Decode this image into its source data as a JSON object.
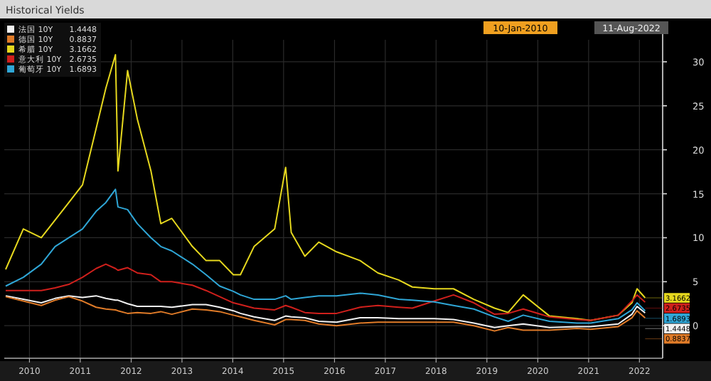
{
  "chart_data": {
    "type": "line",
    "title": "Historical Yields",
    "x": [
      "2010-01-11",
      "2010-05-18",
      "2010-09-24",
      "2011-01-01",
      "2011-04-10",
      "2011-07-17",
      "2011-10-23",
      "2012-01-01",
      "2012-03-10",
      "2012-03-28",
      "2012-06-05",
      "2012-08-14",
      "2012-11-20",
      "2013-01-30",
      "2013-04-19",
      "2013-09-14",
      "2013-12-21",
      "2014-03-29",
      "2014-07-05",
      "2014-08-25",
      "2014-12-01",
      "2015-04-28",
      "2015-07-16",
      "2015-08-25",
      "2015-12-01",
      "2016-03-10",
      "2016-07-16",
      "2017-01-01",
      "2017-05-09",
      "2017-10-05",
      "2018-01-11",
      "2018-06-18",
      "2018-11-03",
      "2019-03-29",
      "2019-08-25",
      "2019-12-01",
      "2020-03-18",
      "2020-09-23",
      "2021-04-08",
      "2021-07-15",
      "2022-01-30",
      "2022-05-08",
      "2022-06-14",
      "2022-08-11"
    ],
    "series": [
      {
        "name": "法国 10Y",
        "color": "#f2f2f2",
        "values": [
          3.4,
          3,
          2.6,
          3.1,
          3.4,
          3.2,
          3.4,
          3.1,
          2.9,
          2.9,
          2.5,
          2.2,
          2.2,
          2.2,
          2.1,
          2.4,
          2.4,
          2.1,
          1.7,
          1.4,
          1,
          0.6,
          1.1,
          1,
          0.9,
          0.5,
          0.4,
          0.9,
          0.9,
          0.8,
          0.8,
          0.8,
          0.7,
          0.3,
          -0.2,
          0,
          0.2,
          -0.2,
          -0.1,
          -0.1,
          0.2,
          1.3,
          2.2,
          1.4448
        ],
        "value_labels": [
          null,
          null,
          null,
          null,
          null,
          null,
          null,
          null,
          null,
          null,
          null,
          null,
          null,
          null,
          null,
          null,
          null,
          null,
          null,
          null,
          null,
          null,
          null,
          null,
          null,
          null,
          null,
          null,
          null,
          null,
          null,
          null,
          null,
          null,
          null,
          null,
          null,
          null,
          null,
          null,
          null,
          null,
          null,
          "1.4448"
        ]
      },
      {
        "name": "德国 10Y",
        "color": "#e07b28",
        "values": [
          3.3,
          2.8,
          2.3,
          2.9,
          3.3,
          2.8,
          2.1,
          1.9,
          1.8,
          1.7,
          1.4,
          1.5,
          1.4,
          1.6,
          1.3,
          1.9,
          1.8,
          1.6,
          1.2,
          1,
          0.6,
          0.1,
          0.7,
          0.7,
          0.6,
          0.2,
          0,
          0.3,
          0.4,
          0.4,
          0.4,
          0.4,
          0.4,
          0,
          -0.6,
          -0.2,
          -0.5,
          -0.5,
          -0.3,
          -0.4,
          -0.1,
          0.9,
          1.7,
          0.8837
        ],
        "value_labels": [
          null,
          null,
          null,
          null,
          null,
          null,
          null,
          null,
          null,
          null,
          null,
          null,
          null,
          null,
          null,
          null,
          null,
          null,
          null,
          null,
          null,
          null,
          null,
          null,
          null,
          null,
          null,
          null,
          null,
          null,
          null,
          null,
          null,
          null,
          null,
          null,
          null,
          null,
          null,
          null,
          null,
          null,
          null,
          "0.8837"
        ]
      },
      {
        "name": "希腊 10Y",
        "color": "#e6d81e",
        "values": [
          6.4,
          11,
          10,
          12,
          14,
          16,
          22.4,
          27,
          30.8,
          17.6,
          29,
          23.5,
          17.6,
          11.6,
          12.2,
          9,
          7.4,
          7.4,
          5.8,
          5.8,
          9,
          11,
          18,
          10.6,
          7.9,
          9.5,
          8.4,
          7.4,
          6,
          5.2,
          4.4,
          4.2,
          4.2,
          3,
          2,
          1.5,
          3.5,
          1.1,
          0.8,
          0.6,
          1.2,
          2.6,
          4.2,
          3.1662
        ],
        "value_labels": [
          null,
          null,
          null,
          null,
          null,
          null,
          null,
          null,
          null,
          null,
          null,
          null,
          null,
          null,
          null,
          null,
          null,
          null,
          null,
          null,
          null,
          null,
          null,
          null,
          null,
          null,
          null,
          null,
          null,
          null,
          null,
          null,
          null,
          null,
          null,
          null,
          null,
          null,
          null,
          null,
          null,
          null,
          null,
          "3.1662"
        ]
      },
      {
        "name": "意大利 10Y",
        "color": "#d0201c",
        "values": [
          4,
          4,
          4,
          4.3,
          4.7,
          5.5,
          6.5,
          7,
          6.5,
          6.3,
          6.6,
          6,
          5.8,
          5,
          5,
          4.6,
          4,
          3.3,
          2.6,
          2.4,
          2,
          1.8,
          2.3,
          2.1,
          1.5,
          1.4,
          1.4,
          2.1,
          2.3,
          2.1,
          2,
          2.8,
          3.5,
          2.6,
          1.3,
          1.4,
          1.9,
          1,
          0.7,
          0.6,
          1.2,
          2.8,
          3.5,
          2.6735
        ],
        "value_labels": [
          null,
          null,
          null,
          null,
          null,
          null,
          null,
          null,
          null,
          null,
          null,
          null,
          null,
          null,
          null,
          null,
          null,
          null,
          null,
          null,
          null,
          null,
          null,
          null,
          null,
          null,
          null,
          null,
          null,
          null,
          null,
          null,
          null,
          null,
          null,
          null,
          null,
          null,
          null,
          null,
          null,
          null,
          null,
          "2.6735"
        ]
      },
      {
        "name": "葡萄牙 10Y",
        "color": "#2fa6d6",
        "values": [
          4.5,
          5.5,
          7,
          9,
          10,
          11,
          13,
          14,
          15.5,
          13.5,
          13.2,
          11.6,
          10,
          9,
          8.5,
          7,
          5.8,
          4.5,
          3.9,
          3.5,
          3,
          3,
          3.4,
          3,
          3.2,
          3.4,
          3.4,
          3.7,
          3.5,
          3,
          2.9,
          2.7,
          2.3,
          1.9,
          1,
          0.5,
          1.2,
          0.5,
          0.3,
          0.3,
          0.8,
          1.8,
          2.6,
          1.6893
        ],
        "value_labels": [
          null,
          null,
          null,
          null,
          null,
          null,
          null,
          null,
          null,
          null,
          null,
          null,
          null,
          null,
          null,
          null,
          null,
          null,
          null,
          null,
          null,
          null,
          null,
          null,
          null,
          null,
          null,
          null,
          null,
          null,
          null,
          null,
          null,
          null,
          null,
          null,
          null,
          null,
          null,
          null,
          null,
          null,
          null,
          "1.6893"
        ]
      }
    ],
    "xlim": [
      "2010-01-01",
      "2022-12-15"
    ],
    "xticks": [
      {
        "value": "2010-07-01",
        "label": "2010"
      },
      {
        "value": "2011-07-01",
        "label": "2011"
      },
      {
        "value": "2012-07-01",
        "label": "2012"
      },
      {
        "value": "2013-07-01",
        "label": "2013"
      },
      {
        "value": "2014-07-01",
        "label": "2014"
      },
      {
        "value": "2015-07-01",
        "label": "2015"
      },
      {
        "value": "2016-07-01",
        "label": "2016"
      },
      {
        "value": "2017-07-01",
        "label": "2017"
      },
      {
        "value": "2018-07-01",
        "label": "2018"
      },
      {
        "value": "2019-07-01",
        "label": "2019"
      },
      {
        "value": "2020-07-01",
        "label": "2020"
      },
      {
        "value": "2021-07-01",
        "label": "2021"
      },
      {
        "value": "2022-07-01",
        "label": "2022"
      }
    ],
    "ylim": [
      -3.7,
      32.5
    ],
    "yticks": [
      0,
      5,
      10,
      15,
      20,
      25,
      30
    ],
    "grid": true,
    "legend": "top left",
    "annotations": [
      "10-Jan-2010",
      "11-Aug-2022"
    ]
  }
}
